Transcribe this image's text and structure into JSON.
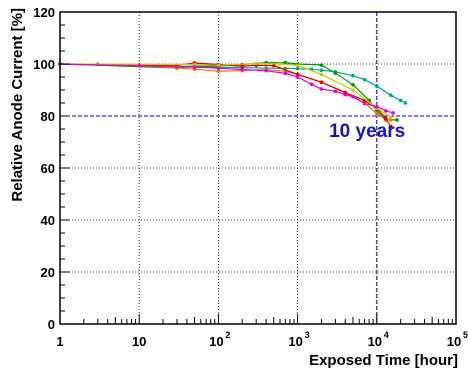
{
  "chart_data": {
    "type": "line",
    "title": "",
    "xlabel": "Exposed Time [hour]",
    "ylabel": "Relative Anode Current [%]",
    "x_scale": "log",
    "xlim": [
      1,
      100000
    ],
    "ylim": [
      0,
      120
    ],
    "grid": true,
    "x_ticks": [
      {
        "value": 1,
        "label": "1"
      },
      {
        "value": 10,
        "label": "10"
      },
      {
        "value": 100,
        "base": "10",
        "exp": "2"
      },
      {
        "value": 1000,
        "base": "10",
        "exp": "3"
      },
      {
        "value": 10000,
        "base": "10",
        "exp": "4"
      },
      {
        "value": 100000,
        "base": "10",
        "exp": "5"
      }
    ],
    "y_ticks": [
      {
        "value": 0,
        "label": "0"
      },
      {
        "value": 20,
        "label": "20"
      },
      {
        "value": 40,
        "label": "40"
      },
      {
        "value": 60,
        "label": "60"
      },
      {
        "value": 80,
        "label": "80"
      },
      {
        "value": 100,
        "label": "100"
      },
      {
        "value": 120,
        "label": "120"
      }
    ],
    "reference_lines": [
      {
        "axis": "y",
        "value": 80,
        "color": "#0000cc"
      },
      {
        "axis": "x",
        "value": 10000,
        "color": "#0000cc"
      }
    ],
    "annotations": [
      {
        "text": "10 years",
        "x": 2500,
        "y": 72,
        "color": "#1515c8"
      }
    ],
    "series": [
      {
        "color": "#00a0a0",
        "points": [
          [
            1,
            100
          ],
          [
            3,
            99.9
          ],
          [
            10,
            99.4
          ],
          [
            30,
            99
          ],
          [
            50,
            99.2
          ],
          [
            100,
            98.8
          ],
          [
            200,
            98.6
          ],
          [
            400,
            98.4
          ],
          [
            700,
            98.3
          ],
          [
            1000,
            98.2
          ],
          [
            1500,
            98
          ],
          [
            2000,
            97.6
          ],
          [
            3000,
            97
          ],
          [
            5000,
            95.5
          ],
          [
            7000,
            94
          ],
          [
            10000,
            91.5
          ],
          [
            15000,
            88
          ],
          [
            20000,
            86
          ],
          [
            23000,
            85
          ]
        ]
      },
      {
        "color": "#009600",
        "points": [
          [
            1,
            100
          ],
          [
            30,
            98.5
          ],
          [
            50,
            99
          ],
          [
            100,
            99.3
          ],
          [
            200,
            99.8
          ],
          [
            400,
            100.5
          ],
          [
            700,
            100.5
          ],
          [
            1000,
            100
          ],
          [
            2000,
            99.6
          ],
          [
            3000,
            96.5
          ],
          [
            5000,
            92
          ],
          [
            8000,
            86
          ],
          [
            10000,
            82
          ],
          [
            13000,
            78.5
          ],
          [
            15000,
            78.5
          ],
          [
            18000,
            78.5
          ]
        ]
      },
      {
        "color": "#e87800",
        "points": [
          [
            1,
            100
          ],
          [
            10,
            99.4
          ],
          [
            50,
            98
          ],
          [
            100,
            97.2
          ],
          [
            200,
            97.5
          ],
          [
            400,
            97.8
          ],
          [
            700,
            97.2
          ],
          [
            1000,
            96
          ],
          [
            2000,
            93
          ],
          [
            4000,
            89
          ],
          [
            7000,
            85
          ],
          [
            10000,
            81
          ],
          [
            13000,
            78.5
          ],
          [
            15000,
            78.5
          ]
        ]
      },
      {
        "color": "#dc0000",
        "points": [
          [
            1,
            100
          ],
          [
            10,
            99.6
          ],
          [
            30,
            99.5
          ],
          [
            50,
            100.4
          ],
          [
            100,
            99.8
          ],
          [
            200,
            99.2
          ],
          [
            300,
            99.5
          ],
          [
            500,
            99.4
          ],
          [
            1000,
            96
          ],
          [
            2000,
            93
          ],
          [
            4000,
            89
          ],
          [
            7000,
            86
          ],
          [
            10000,
            83
          ],
          [
            13000,
            79
          ],
          [
            15000,
            76
          ]
        ]
      },
      {
        "color": "#c8c800",
        "points": [
          [
            1,
            100
          ],
          [
            50,
            99.8
          ],
          [
            100,
            99.5
          ],
          [
            300,
            100.2
          ],
          [
            600,
            100
          ],
          [
            1000,
            99.5
          ],
          [
            2000,
            96
          ],
          [
            5000,
            90
          ],
          [
            10000,
            83
          ],
          [
            15000,
            79.5
          ]
        ]
      },
      {
        "color": "#e000e0",
        "points": [
          [
            1,
            100
          ],
          [
            10,
            99.3
          ],
          [
            50,
            98.8
          ],
          [
            100,
            98.4
          ],
          [
            200,
            97.9
          ],
          [
            400,
            97.4
          ],
          [
            700,
            96.4
          ],
          [
            1000,
            95
          ],
          [
            1500,
            92.2
          ],
          [
            2000,
            90.4
          ],
          [
            3000,
            89.5
          ],
          [
            4000,
            88.2
          ],
          [
            5000,
            87.4
          ],
          [
            7000,
            84.8
          ],
          [
            10000,
            83.6
          ],
          [
            13000,
            82
          ],
          [
            16000,
            81.2
          ]
        ]
      }
    ]
  }
}
